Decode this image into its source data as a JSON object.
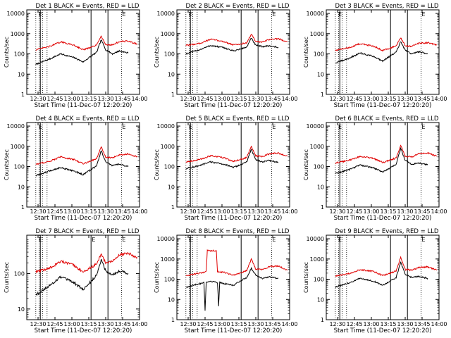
{
  "figure": {
    "title_template": "Det {n} BLACK = Events, RED = LLD",
    "xlabel": "Start Time (11-Dec-07 12:20:20)",
    "ylabel": "Counts/sec"
  },
  "colors": {
    "events": "#000000",
    "lld": "#e00000",
    "axes": "#000000"
  },
  "chart_data": [
    {
      "type": "line",
      "title": "Det 1 BLACK = Events, RED = LLD",
      "xlabel": "Start Time (11-Dec-07 12:20:20)",
      "ylabel": "Counts/sec",
      "xlim": [
        "12:20",
        "14:00"
      ],
      "ylim": [
        1,
        15000
      ],
      "yscale": "log",
      "x_ticks": [
        "12:30",
        "12:45",
        "13:00",
        "13:15",
        "13:30",
        "13:45",
        "14:00"
      ],
      "y_ticks": [
        "1",
        "10",
        "100",
        "1000",
        "10000"
      ],
      "vlines_dotted": [
        "12:28",
        "12:31",
        "12:34",
        "12:38",
        "13:44"
      ],
      "vlines_solid": [
        "12:32",
        "13:17",
        "13:32"
      ],
      "vline_labels": [
        {
          "at": "12:30",
          "text": "E"
        },
        {
          "at": "13:44",
          "text": "E"
        }
      ],
      "series": [
        {
          "name": "BLACK = Events",
          "x": [
            "12:28",
            "12:40",
            "12:50",
            "13:02",
            "13:10",
            "13:16",
            "13:22",
            "13:26",
            "13:30",
            "13:36",
            "13:42",
            "13:50"
          ],
          "y": [
            30,
            55,
            100,
            65,
            40,
            70,
            120,
            500,
            160,
            100,
            140,
            110
          ]
        },
        {
          "name": "RED = LLD",
          "x": [
            "12:28",
            "12:40",
            "12:50",
            "13:02",
            "13:10",
            "13:16",
            "13:22",
            "13:26",
            "13:30",
            "13:36",
            "13:42",
            "13:50",
            "13:58"
          ],
          "y": [
            160,
            230,
            390,
            270,
            160,
            200,
            270,
            800,
            280,
            280,
            400,
            430,
            300
          ]
        }
      ]
    },
    {
      "type": "line",
      "title": "Det 2 BLACK = Events, RED = LLD",
      "xlabel": "Start Time (11-Dec-07 12:20:20)",
      "ylabel": "Counts/sec",
      "xlim": [
        "12:20",
        "14:00"
      ],
      "ylim": [
        1,
        15000
      ],
      "yscale": "log",
      "x_ticks": [
        "12:30",
        "12:45",
        "13:00",
        "13:15",
        "13:30",
        "13:45",
        "14:00"
      ],
      "y_ticks": [
        "1",
        "10",
        "100",
        "1000",
        "10000"
      ],
      "vlines_dotted": [
        "12:28",
        "12:31",
        "12:34",
        "12:38",
        "13:44"
      ],
      "vlines_solid": [
        "12:32",
        "13:17",
        "13:32"
      ],
      "vline_labels": [
        {
          "at": "12:30",
          "text": "E"
        },
        {
          "at": "13:44",
          "text": "E"
        }
      ],
      "series": [
        {
          "name": "BLACK = Events",
          "x": [
            "12:28",
            "12:40",
            "12:50",
            "13:02",
            "13:10",
            "13:16",
            "13:22",
            "13:26",
            "13:30",
            "13:36",
            "13:42",
            "13:50"
          ],
          "y": [
            100,
            160,
            260,
            200,
            140,
            170,
            220,
            600,
            260,
            230,
            250,
            210
          ]
        },
        {
          "name": "RED = LLD",
          "x": [
            "12:28",
            "12:40",
            "12:50",
            "13:02",
            "13:10",
            "13:16",
            "13:22",
            "13:26",
            "13:30",
            "13:36",
            "13:42",
            "13:50",
            "13:58"
          ],
          "y": [
            260,
            330,
            530,
            400,
            280,
            300,
            360,
            950,
            400,
            380,
            520,
            560,
            400
          ]
        }
      ]
    },
    {
      "type": "line",
      "title": "Det 3 BLACK = Events, RED = LLD",
      "xlabel": "Start Time (11-Dec-07 12:20:20)",
      "ylabel": "Counts/sec",
      "xlim": [
        "12:20",
        "14:00"
      ],
      "ylim": [
        1,
        15000
      ],
      "yscale": "log",
      "x_ticks": [
        "12:30",
        "12:45",
        "13:00",
        "13:15",
        "13:30",
        "13:45",
        "14:00"
      ],
      "y_ticks": [
        "1",
        "10",
        "100",
        "1000",
        "10000"
      ],
      "vlines_dotted": [
        "12:28",
        "12:31",
        "12:34",
        "12:38",
        "13:44"
      ],
      "vlines_solid": [
        "12:32",
        "13:17",
        "13:32"
      ],
      "vline_labels": [
        {
          "at": "12:30",
          "text": "E"
        },
        {
          "at": "13:44",
          "text": "E"
        }
      ],
      "series": [
        {
          "name": "BLACK = Events",
          "x": [
            "12:28",
            "12:40",
            "12:50",
            "13:02",
            "13:10",
            "13:16",
            "13:22",
            "13:26",
            "13:30",
            "13:36",
            "13:42",
            "13:50"
          ],
          "y": [
            35,
            60,
            110,
            75,
            45,
            75,
            120,
            400,
            150,
            100,
            130,
            100
          ]
        },
        {
          "name": "RED = LLD",
          "x": [
            "12:28",
            "12:40",
            "12:50",
            "13:02",
            "13:10",
            "13:16",
            "13:22",
            "13:26",
            "13:30",
            "13:36",
            "13:42",
            "13:50",
            "13:58"
          ],
          "y": [
            150,
            200,
            320,
            240,
            150,
            190,
            250,
            620,
            250,
            240,
            330,
            360,
            270
          ]
        }
      ]
    },
    {
      "type": "line",
      "title": "Det 4 BLACK = Events, RED = LLD",
      "xlabel": "Start Time (11-Dec-07 12:20:20)",
      "ylabel": "Counts/sec",
      "xlim": [
        "12:20",
        "14:00"
      ],
      "ylim": [
        1,
        15000
      ],
      "yscale": "log",
      "x_ticks": [
        "12:30",
        "12:45",
        "13:00",
        "13:15",
        "13:30",
        "13:45",
        "14:00"
      ],
      "y_ticks": [
        "1",
        "10",
        "100",
        "1000",
        "10000"
      ],
      "vlines_dotted": [
        "12:28",
        "12:31",
        "12:34",
        "12:38",
        "13:44"
      ],
      "vlines_solid": [
        "12:32",
        "13:17",
        "13:32"
      ],
      "vline_labels": [
        {
          "at": "12:30",
          "text": "E"
        },
        {
          "at": "13:44",
          "text": "E"
        }
      ],
      "series": [
        {
          "name": "BLACK = Events",
          "x": [
            "12:28",
            "12:40",
            "12:50",
            "13:02",
            "13:10",
            "13:16",
            "13:22",
            "13:26",
            "13:30",
            "13:36",
            "13:42",
            "13:50"
          ],
          "y": [
            35,
            60,
            90,
            60,
            40,
            65,
            110,
            600,
            170,
            110,
            130,
            100
          ]
        },
        {
          "name": "RED = LLD",
          "x": [
            "12:28",
            "12:40",
            "12:50",
            "13:02",
            "13:10",
            "13:16",
            "13:22",
            "13:26",
            "13:30",
            "13:36",
            "13:42",
            "13:50",
            "13:58"
          ],
          "y": [
            130,
            180,
            300,
            220,
            140,
            180,
            250,
            950,
            280,
            270,
            380,
            420,
            300
          ]
        }
      ]
    },
    {
      "type": "line",
      "title": "Det 5 BLACK = Events, RED = LLD",
      "xlabel": "Start Time (11-Dec-07 12:20:20)",
      "ylabel": "Counts/sec",
      "xlim": [
        "12:20",
        "14:00"
      ],
      "ylim": [
        1,
        15000
      ],
      "yscale": "log",
      "x_ticks": [
        "12:30",
        "12:45",
        "13:00",
        "13:15",
        "13:30",
        "13:45",
        "14:00"
      ],
      "y_ticks": [
        "1",
        "10",
        "100",
        "1000",
        "10000"
      ],
      "vlines_dotted": [
        "12:28",
        "12:31",
        "12:34",
        "12:38",
        "13:44"
      ],
      "vlines_solid": [
        "12:32",
        "13:17",
        "13:32"
      ],
      "vline_labels": [
        {
          "at": "12:30",
          "text": "E"
        },
        {
          "at": "13:44",
          "text": "E"
        }
      ],
      "series": [
        {
          "name": "BLACK = Events",
          "x": [
            "12:28",
            "12:40",
            "12:50",
            "13:02",
            "13:10",
            "13:16",
            "13:22",
            "13:26",
            "13:30",
            "13:36",
            "13:42",
            "13:50"
          ],
          "y": [
            80,
            110,
            170,
            130,
            90,
            120,
            170,
            700,
            220,
            170,
            200,
            160
          ]
        },
        {
          "name": "RED = LLD",
          "x": [
            "12:28",
            "12:40",
            "12:50",
            "13:02",
            "13:10",
            "13:16",
            "13:22",
            "13:26",
            "13:30",
            "13:36",
            "13:42",
            "13:50",
            "13:58"
          ],
          "y": [
            170,
            220,
            340,
            270,
            180,
            220,
            280,
            1000,
            330,
            310,
            430,
            460,
            330
          ]
        }
      ]
    },
    {
      "type": "line",
      "title": "Det 6 BLACK = Events, RED = LLD",
      "xlabel": "Start Time (11-Dec-07 12:20:20)",
      "ylabel": "Counts/sec",
      "xlim": [
        "12:20",
        "14:00"
      ],
      "ylim": [
        1,
        15000
      ],
      "yscale": "log",
      "x_ticks": [
        "12:30",
        "12:45",
        "13:00",
        "13:15",
        "13:30",
        "13:45",
        "14:00"
      ],
      "y_ticks": [
        "1",
        "10",
        "100",
        "1000",
        "10000"
      ],
      "vlines_dotted": [
        "12:28",
        "12:31",
        "12:34",
        "12:38",
        "13:44"
      ],
      "vlines_solid": [
        "12:32",
        "13:17",
        "13:32"
      ],
      "vline_labels": [
        {
          "at": "12:30",
          "text": "E"
        },
        {
          "at": "13:44",
          "text": "E"
        }
      ],
      "series": [
        {
          "name": "BLACK = Events",
          "x": [
            "12:28",
            "12:40",
            "12:50",
            "13:02",
            "13:10",
            "13:16",
            "13:22",
            "13:26",
            "13:30",
            "13:36",
            "13:42",
            "13:50"
          ],
          "y": [
            45,
            70,
            120,
            85,
            55,
            80,
            130,
            800,
            200,
            130,
            150,
            120
          ]
        },
        {
          "name": "RED = LLD",
          "x": [
            "12:28",
            "12:40",
            "12:50",
            "13:02",
            "13:10",
            "13:16",
            "13:22",
            "13:26",
            "13:30",
            "13:36",
            "13:42",
            "13:50",
            "13:58"
          ],
          "y": [
            150,
            200,
            320,
            250,
            160,
            200,
            270,
            1100,
            320,
            300,
            420,
            470,
            320
          ]
        }
      ]
    },
    {
      "type": "line",
      "title": "Det 7 BLACK = Events, RED = LLD",
      "xlabel": "Start Time (11-Dec-07 12:20:20)",
      "ylabel": "Counts/sec",
      "xlim": [
        "12:20",
        "14:00"
      ],
      "ylim": [
        5,
        1200
      ],
      "yscale": "log",
      "x_ticks": [
        "12:30",
        "12:45",
        "13:00",
        "13:15",
        "13:30",
        "13:45",
        "14:00"
      ],
      "y_ticks": [
        "10",
        "100"
      ],
      "vlines_dotted": [
        "12:28",
        "12:31",
        "12:34",
        "12:38",
        "13:44"
      ],
      "vlines_solid": [
        "12:32",
        "13:17",
        "13:32"
      ],
      "vline_labels": [
        {
          "at": "12:30",
          "text": "E"
        },
        {
          "at": "13:17",
          "text": "E"
        },
        {
          "at": "13:44",
          "text": "E"
        }
      ],
      "series": [
        {
          "name": "BLACK = Events",
          "x": [
            "12:28",
            "12:40",
            "12:50",
            "13:02",
            "13:10",
            "13:16",
            "13:22",
            "13:26",
            "13:30",
            "13:36",
            "13:42",
            "13:50"
          ],
          "y": [
            25,
            45,
            80,
            55,
            35,
            55,
            90,
            250,
            120,
            90,
            120,
            100
          ]
        },
        {
          "name": "RED = LLD",
          "x": [
            "12:28",
            "12:40",
            "12:50",
            "13:02",
            "13:10",
            "13:16",
            "13:22",
            "13:26",
            "13:30",
            "13:36",
            "13:42",
            "13:50",
            "13:58"
          ],
          "y": [
            110,
            140,
            220,
            170,
            110,
            140,
            190,
            350,
            200,
            220,
            330,
            380,
            270
          ]
        }
      ]
    },
    {
      "type": "line",
      "title": "Det 8 BLACK = Events, RED = LLD",
      "xlabel": "Start Time (11-Dec-07 12:20:20)",
      "ylabel": "Counts/sec",
      "xlim": [
        "12:20",
        "14:00"
      ],
      "ylim": [
        1,
        15000
      ],
      "yscale": "log",
      "x_ticks": [
        "12:30",
        "12:45",
        "13:00",
        "13:15",
        "13:30",
        "13:45",
        "14:00"
      ],
      "y_ticks": [
        "1",
        "10",
        "100",
        "1000",
        "10000"
      ],
      "vlines_dotted": [
        "12:28",
        "12:31",
        "12:34",
        "12:38",
        "13:44"
      ],
      "vlines_solid": [
        "12:32",
        "13:17",
        "13:32"
      ],
      "vline_labels": [
        {
          "at": "12:30",
          "text": "E"
        },
        {
          "at": "13:44",
          "text": "E"
        }
      ],
      "series": [
        {
          "name": "BLACK = Events",
          "x": [
            "12:28",
            "12:40",
            "12:44",
            "12:45",
            "12:46",
            "12:50",
            "12:56",
            "12:57",
            "12:58",
            "13:02",
            "13:10",
            "13:16",
            "13:22",
            "13:26",
            "13:30",
            "13:36",
            "13:42",
            "13:50"
          ],
          "y": [
            40,
            60,
            70,
            3,
            70,
            80,
            70,
            5,
            70,
            60,
            50,
            80,
            120,
            350,
            160,
            110,
            130,
            110
          ]
        },
        {
          "name": "RED = LLD",
          "x": [
            "12:28",
            "12:40",
            "12:46",
            "12:47",
            "12:55",
            "12:56",
            "13:02",
            "13:10",
            "13:16",
            "13:22",
            "13:26",
            "13:30",
            "13:36",
            "13:42",
            "13:50",
            "13:58"
          ],
          "y": [
            150,
            200,
            230,
            2600,
            2600,
            240,
            220,
            160,
            200,
            270,
            1000,
            320,
            300,
            420,
            450,
            280
          ]
        }
      ]
    },
    {
      "type": "line",
      "title": "Det 9 BLACK = Events, RED = LLD",
      "xlabel": "Start Time (11-Dec-07 12:20:20)",
      "ylabel": "Counts/sec",
      "xlim": [
        "12:20",
        "14:00"
      ],
      "ylim": [
        1,
        15000
      ],
      "yscale": "log",
      "x_ticks": [
        "12:30",
        "12:45",
        "13:00",
        "13:15",
        "13:30",
        "13:45",
        "14:00"
      ],
      "y_ticks": [
        "1",
        "10",
        "100",
        "1000",
        "10000"
      ],
      "vlines_dotted": [
        "12:28",
        "12:31",
        "12:34",
        "12:38",
        "13:44"
      ],
      "vlines_solid": [
        "12:32",
        "13:17",
        "13:32"
      ],
      "vline_labels": [
        {
          "at": "12:30",
          "text": "E"
        },
        {
          "at": "13:44",
          "text": "E"
        }
      ],
      "series": [
        {
          "name": "BLACK = Events",
          "x": [
            "12:28",
            "12:40",
            "12:50",
            "13:02",
            "13:10",
            "13:16",
            "13:22",
            "13:26",
            "13:30",
            "13:36",
            "13:42",
            "13:50"
          ],
          "y": [
            40,
            65,
            110,
            80,
            50,
            75,
            120,
            700,
            180,
            120,
            140,
            110
          ]
        },
        {
          "name": "RED = LLD",
          "x": [
            "12:28",
            "12:40",
            "12:50",
            "13:02",
            "13:10",
            "13:16",
            "13:22",
            "13:26",
            "13:30",
            "13:36",
            "13:42",
            "13:50",
            "13:58"
          ],
          "y": [
            140,
            190,
            300,
            240,
            150,
            190,
            260,
            1200,
            300,
            280,
            380,
            410,
            280
          ]
        }
      ]
    }
  ]
}
